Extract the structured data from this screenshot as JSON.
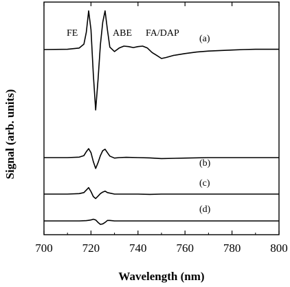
{
  "chart_data": {
    "type": "line",
    "xlabel": "Wavelength (nm)",
    "ylabel": "Signal (arb. units)",
    "xlim": [
      700,
      800
    ],
    "xticks": [
      700,
      720,
      740,
      760,
      780,
      800
    ],
    "xtick_labels": [
      "700",
      "720",
      "740",
      "760",
      "780",
      "800"
    ],
    "grid": false,
    "peak_annotations": [
      {
        "text": "FE",
        "x": 719
      },
      {
        "text": "ABE",
        "x": 726
      },
      {
        "text": "FA/DAP",
        "x": 743
      }
    ],
    "series": [
      {
        "name": "(a)",
        "x": [
          700,
          710,
          715,
          717,
          718,
          719,
          720,
          721,
          722,
          723,
          724,
          725,
          726,
          727,
          728,
          730,
          732,
          734,
          736,
          738,
          740,
          742,
          744,
          746,
          748,
          750,
          752,
          755,
          760,
          765,
          770,
          775,
          780,
          785,
          790,
          795,
          800
        ],
        "y": [
          0,
          0.05,
          0.3,
          1.1,
          3.5,
          7.8,
          4.0,
          -5.0,
          -12.2,
          -6.0,
          1.0,
          5.5,
          7.8,
          4.0,
          0.5,
          -0.4,
          0.3,
          0.7,
          0.6,
          0.4,
          0.6,
          0.7,
          0.3,
          -0.6,
          -1.2,
          -1.8,
          -1.6,
          -1.2,
          -0.8,
          -0.5,
          -0.3,
          -0.2,
          -0.1,
          0,
          0.05,
          0.05,
          0.05
        ]
      },
      {
        "name": "(b)",
        "x": [
          700,
          710,
          715,
          717,
          718,
          719,
          720,
          721,
          722,
          723,
          724,
          725,
          726,
          727,
          728,
          730,
          732,
          735,
          740,
          745,
          750,
          760,
          770,
          780,
          790,
          800
        ],
        "y": [
          0,
          0,
          0.1,
          0.4,
          1.2,
          1.8,
          1.0,
          -0.8,
          -2.2,
          -1.0,
          0.4,
          1.4,
          1.7,
          1.0,
          0.3,
          -0.1,
          0,
          0.05,
          0,
          -0.05,
          -0.2,
          -0.1,
          0,
          0,
          0,
          0
        ]
      },
      {
        "name": "(c)",
        "x": [
          700,
          710,
          715,
          717,
          718,
          719,
          720,
          721,
          722,
          723,
          724,
          725,
          726,
          727,
          730,
          735,
          740,
          745,
          750,
          760,
          770,
          780,
          790,
          800
        ],
        "y": [
          0,
          0,
          0.1,
          0.3,
          0.8,
          1.3,
          0.5,
          -0.5,
          -0.9,
          -0.4,
          0.1,
          0.4,
          0.6,
          0.3,
          0,
          0,
          0,
          -0.05,
          0,
          0,
          0,
          0,
          0,
          0
        ]
      },
      {
        "name": "(d)",
        "x": [
          700,
          710,
          715,
          718,
          720,
          721,
          722,
          723,
          724,
          725,
          726,
          727,
          728,
          730,
          735,
          740,
          750,
          760,
          770,
          780,
          790,
          800
        ],
        "y": [
          0,
          0,
          0,
          0.05,
          0.2,
          0.35,
          0.2,
          -0.3,
          -0.7,
          -0.6,
          -0.3,
          0.1,
          0.1,
          0,
          0,
          0,
          0,
          0,
          0,
          0,
          0,
          0
        ]
      }
    ]
  }
}
